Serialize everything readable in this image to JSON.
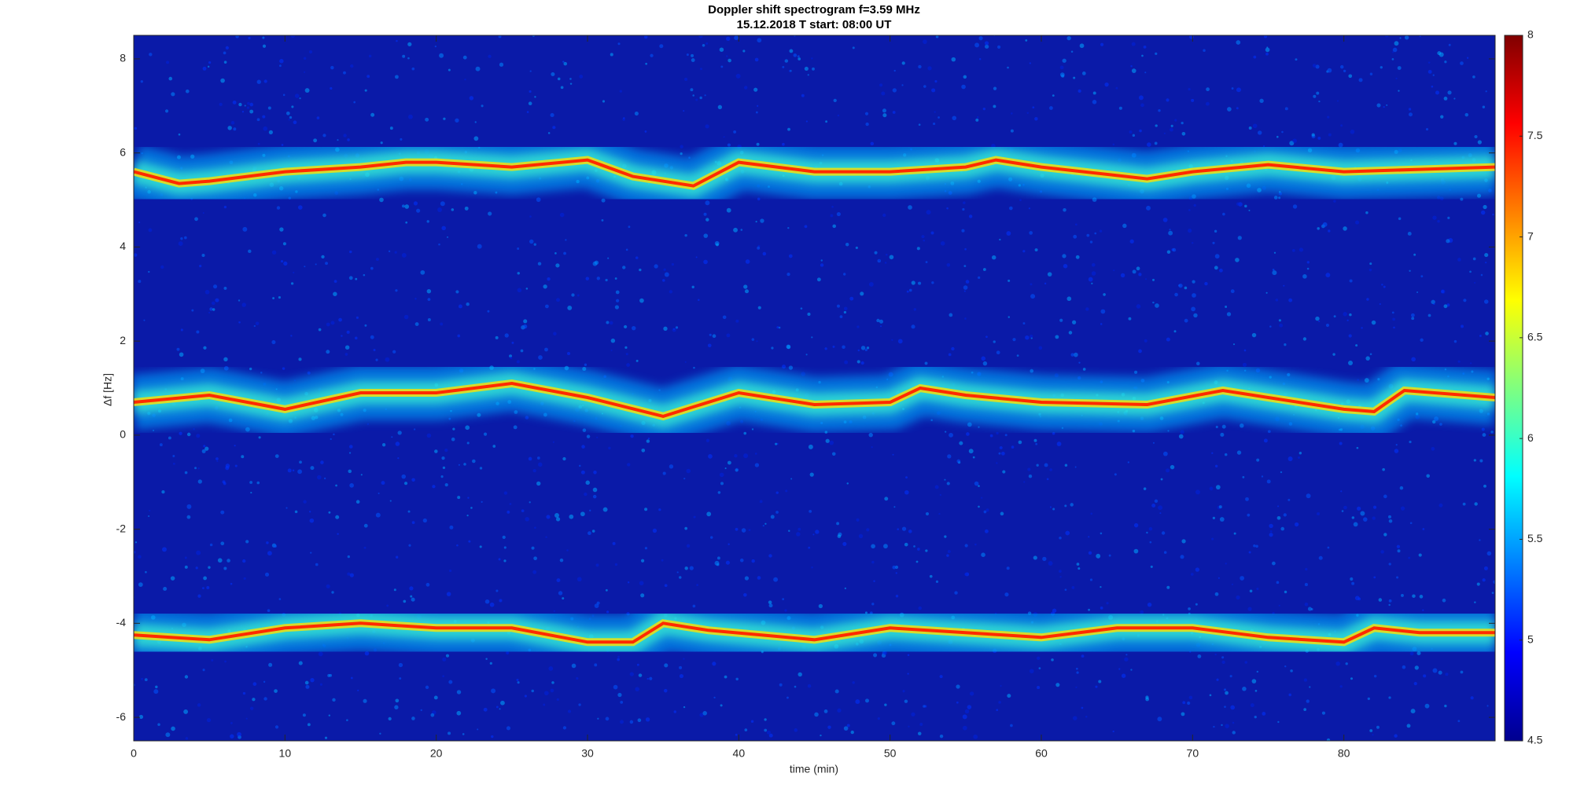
{
  "chart_data": {
    "type": "spectrogram",
    "title": [
      "Doppler shift spectrogram f=3.59 MHz",
      "15.12.2018   T start: 08:00 UT"
    ],
    "xlabel": "time (min)",
    "ylabel": "Δf [Hz]",
    "xlim": [
      0,
      90
    ],
    "ylim": [
      -6.5,
      8.5
    ],
    "xticks": [
      0,
      10,
      20,
      30,
      40,
      50,
      60,
      70,
      80
    ],
    "yticks": [
      -6,
      -4,
      -2,
      0,
      2,
      4,
      6,
      8
    ],
    "clim": [
      4.5,
      8
    ],
    "cticks": [
      4.5,
      5,
      5.5,
      6,
      6.5,
      7,
      7.5,
      8
    ],
    "series": [
      {
        "color": "#ff2a00",
        "x": [
          0,
          3,
          5,
          10,
          15,
          18,
          20,
          25,
          30,
          33,
          37,
          40,
          45,
          50,
          55,
          57,
          60,
          67,
          70,
          75,
          80,
          85,
          90
        ],
        "values": [
          5.6,
          5.35,
          5.4,
          5.6,
          5.7,
          5.8,
          5.8,
          5.7,
          5.85,
          5.5,
          5.3,
          5.8,
          5.6,
          5.6,
          5.7,
          5.85,
          5.7,
          5.45,
          5.6,
          5.75,
          5.6,
          5.65,
          5.7
        ]
      },
      {
        "color": "#ff2a00",
        "x": [
          0,
          5,
          10,
          15,
          20,
          25,
          30,
          35,
          37,
          40,
          45,
          50,
          52,
          55,
          60,
          67,
          72,
          75,
          80,
          82,
          84,
          90
        ],
        "values": [
          0.7,
          0.85,
          0.55,
          0.9,
          0.9,
          1.1,
          0.8,
          0.4,
          0.6,
          0.9,
          0.65,
          0.7,
          1.0,
          0.85,
          0.7,
          0.65,
          0.95,
          0.8,
          0.55,
          0.5,
          0.95,
          0.8
        ]
      },
      {
        "color": "#ff2a00",
        "x": [
          0,
          5,
          10,
          15,
          20,
          25,
          30,
          33,
          35,
          38,
          45,
          50,
          55,
          60,
          65,
          70,
          75,
          80,
          82,
          85,
          90
        ],
        "values": [
          -4.25,
          -4.35,
          -4.1,
          -4.0,
          -4.1,
          -4.1,
          -4.4,
          -4.4,
          -4.0,
          -4.15,
          -4.35,
          -4.1,
          -4.2,
          -4.3,
          -4.1,
          -4.1,
          -4.3,
          -4.4,
          -4.1,
          -4.2,
          -4.2
        ]
      }
    ]
  }
}
